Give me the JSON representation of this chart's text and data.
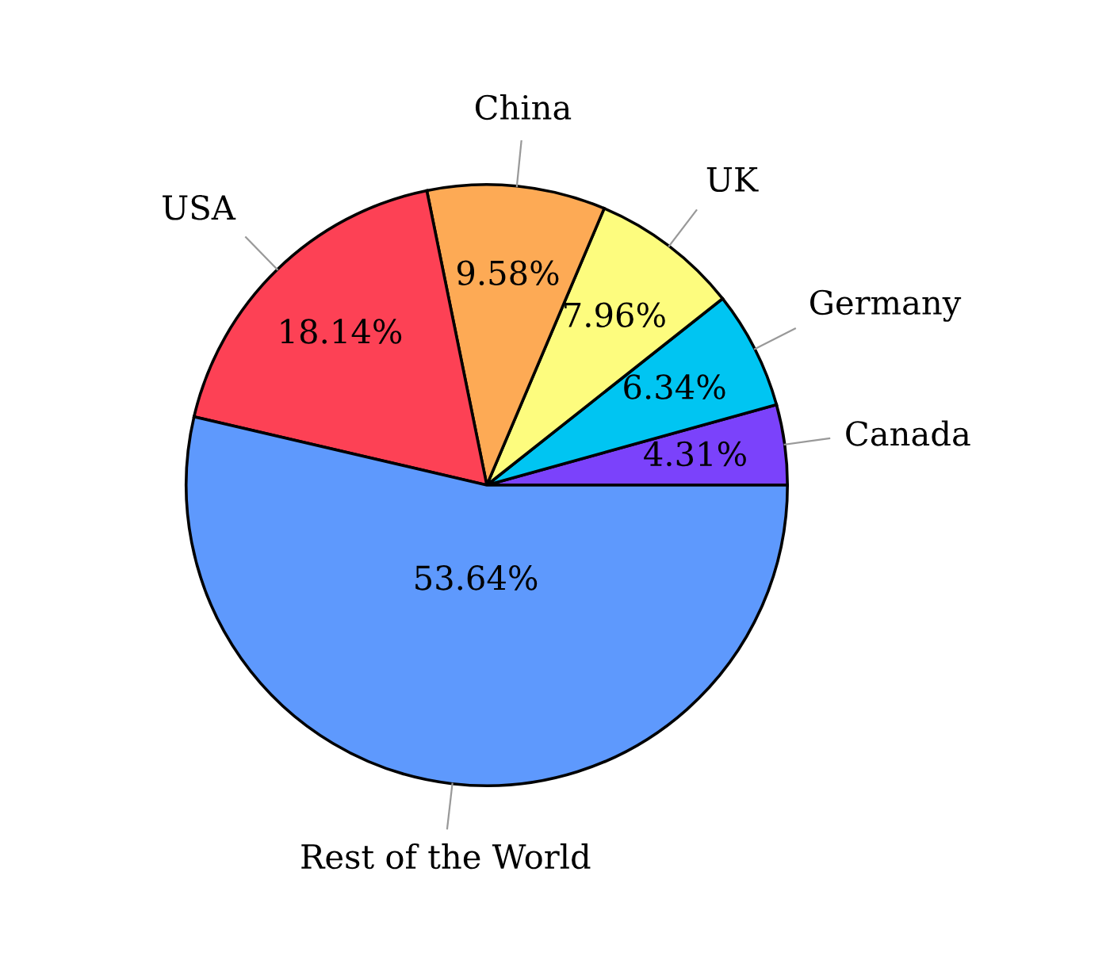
{
  "chart_data": {
    "type": "pie",
    "categories": [
      "Canada",
      "Germany",
      "UK",
      "China",
      "USA",
      "Rest of the World"
    ],
    "values": [
      4.31,
      6.34,
      7.96,
      9.58,
      18.14,
      53.64
    ],
    "value_labels": [
      "4.31%",
      "6.34%",
      "7.96%",
      "9.58%",
      "18.14%",
      "53.64%"
    ],
    "colors": [
      "#7b42fb",
      "#00c5f2",
      "#fdfc7e",
      "#fdaa55",
      "#fd4155",
      "#5e99fd"
    ]
  }
}
